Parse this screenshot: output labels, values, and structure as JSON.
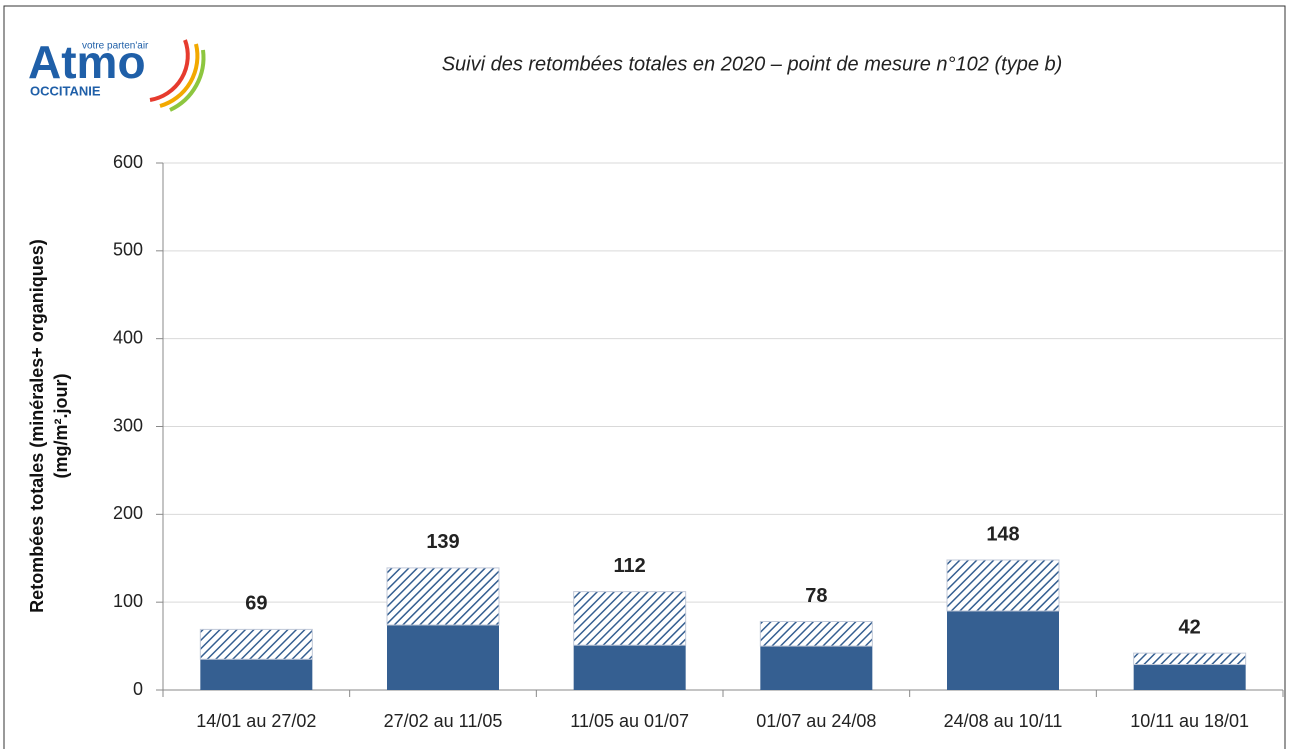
{
  "logo": {
    "name": "Atmo",
    "tagline": "votre parten'air",
    "region": "OCCITANIE"
  },
  "chart_data": {
    "type": "stacked_bar",
    "title": "Suivi des retombées totales en 2020 – point de mesure n°102 (type b)",
    "y_label": [
      "Retombées totales (minérales+ organiques)",
      "(mg/m².jour)"
    ],
    "categories": [
      "14/01 au 27/02",
      "27/02 au 11/05",
      "11/05 au 01/07",
      "01/07 au 24/08",
      "24/08 au 10/11",
      "10/11 au 18/01"
    ],
    "series": [
      {
        "color": "#355f91",
        "pattern": "solid",
        "values": [
          35,
          74,
          51,
          50,
          90,
          29
        ]
      },
      {
        "color": "#355f91",
        "pattern": "hatched",
        "values": [
          34,
          65,
          61,
          28,
          58,
          13
        ]
      }
    ],
    "total_labels": [
      69,
      139,
      112,
      78,
      148,
      42
    ],
    "ylim": [
      0,
      600
    ],
    "yticks": [
      0,
      100,
      200,
      300,
      400,
      500,
      600
    ],
    "grid": true
  }
}
